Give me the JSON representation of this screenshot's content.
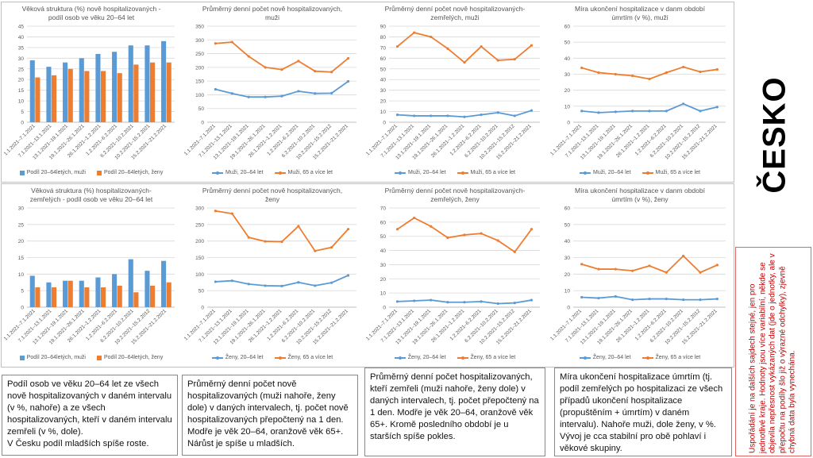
{
  "colors": {
    "blue": "#5b9bd5",
    "orange": "#ed7d31",
    "grid": "#d9d9d9",
    "axis": "#bfbfbf",
    "label": "#595959"
  },
  "country": "ČESKO",
  "side_note": "Uspořádání je na dalších sajdech stejné, jen pro jednotlivé kraje. Hodnoty jsou více variabilní, někde se objevila nepřesnost vykázaných dat (jde o jednotky, ale v přepočtu na podíly šlo již o výrazné odchylky), zjevně chybná data byla vynechána.",
  "notes": [
    "Podíl osob ve věku 20–64 let ze všech nově hospitalizovaných v daném intervalu (v %, nahoře) a ze všech hospitalizovaných, kteří v daném intervalu zemřeli (v %, dole).\nV Česku podíl mladších spíše roste.",
    "Průměrný denní počet nově hospitalizovaných (muži nahoře, ženy dole) v daných intervalech, tj. počet nově hospitalizovaných přepočtený na 1 den. Modře je věk 20–64, oranžově věk 65+. Nárůst je spíše u mladších.",
    "Průměrný denní počet hospitalizovaných, kteří zemřeli (muži nahoře, ženy dole) v daných intervalech, tj. počet přepočtený na 1 den. Modře je věk 20–64, oranžově věk 65+. Kromě posledního období je u starších spíše pokles.",
    "Míra ukončení hospitalizace úmrtím (tj. podíl zemřelých po hospitalizaci ze všech případů ukončení hospitalizace (propuštěním + úmrtím) v daném intervalu). Nahoře muži, dole ženy, v %. Vývoj je cca stabilní pro obě pohlaví i věkové skupiny."
  ],
  "chart_data": [
    {
      "type": "bar",
      "title": "Věková struktura (%) nově hospitalizovaných -\npodíl osob ve věku 20–64 let",
      "categories": [
        "1.1.2021–7.1.2021",
        "7.1.2021–13.1.2021",
        "13.1.2021–19.1.2021",
        "19.1.2021–26.1.2021",
        "26.1.2021–1.2.2021",
        "1.2.2021–6.2.2021",
        "6.2.2021–10.2.2021",
        "10.2.2021–15.2.2021",
        "15.2.2021–21.2.2021"
      ],
      "ylim": [
        0,
        45
      ],
      "yticks": [
        0,
        5,
        10,
        15,
        20,
        25,
        30,
        35,
        40,
        45
      ],
      "series": [
        {
          "name": "Podíl 20–64letých, muži",
          "color": "#5b9bd5",
          "values": [
            29,
            26,
            28,
            30,
            32,
            33,
            36,
            36,
            38
          ]
        },
        {
          "name": "Podíl 20–64letých, ženy",
          "color": "#ed7d31",
          "values": [
            21,
            22,
            25,
            24,
            24,
            23,
            27,
            28,
            28
          ]
        }
      ]
    },
    {
      "type": "line",
      "title": "Průměrný denní počet nově hospitalizovaných,\nmuži",
      "categories": [
        "1.1.2021–7.1.2021",
        "7.1.2021–13.1.2021",
        "13.1.2021–19.1.2021",
        "19.1.2021–26.1.2021",
        "26.1.2021–1.2.2021",
        "1.2.2021–6.2.2021",
        "6.2.2021–10.2.2021",
        "10.2.2021–15.2.2012",
        "15.2.2021–21.2.2021"
      ],
      "ylim": [
        0,
        350
      ],
      "yticks": [
        0,
        50,
        100,
        150,
        200,
        250,
        300,
        350
      ],
      "series": [
        {
          "name": "Muži, 20–64 let",
          "color": "#5b9bd5",
          "values": [
            120,
            105,
            92,
            92,
            95,
            113,
            105,
            106,
            149
          ]
        },
        {
          "name": "Muži, 65 a více let",
          "color": "#ed7d31",
          "values": [
            287,
            292,
            240,
            200,
            192,
            223,
            186,
            183,
            233
          ]
        }
      ]
    },
    {
      "type": "line",
      "title": "Průměrný denní počet nově hospitalizovaných-\nzemřelých, muži",
      "categories": [
        "1.1.2021–7.1.2021",
        "7.1.2021–13.1.2021",
        "13.1.2021–19.1.2021",
        "19.1.2021–26.1.2021",
        "26.1.2021–1.2.2021",
        "1.2.2021–6.2.2021",
        "6.2.2021–10.2.2021",
        "10.2.2021–15.2.2012",
        "15.2.2021–21.2.2021"
      ],
      "ylim": [
        0,
        90
      ],
      "yticks": [
        0,
        10,
        20,
        30,
        40,
        50,
        60,
        70,
        80,
        90
      ],
      "series": [
        {
          "name": "Muži, 20–64 let",
          "color": "#5b9bd5",
          "values": [
            7,
            6,
            6,
            6,
            5,
            7,
            9,
            6,
            11
          ]
        },
        {
          "name": "Muži, 65 a více let",
          "color": "#ed7d31",
          "values": [
            71,
            84,
            80,
            69,
            56,
            71,
            58,
            59,
            72
          ]
        }
      ]
    },
    {
      "type": "line",
      "title": "Míra ukončení hospitalizace v danm období\númrtím (v %), muži",
      "categories": [
        "1.1.2021–7.1.2021",
        "7.1.2021–13.1.2021",
        "13.1.2021–19.1.2021",
        "19.1.2021–26.1.2021",
        "26.1.2021–1.2.2021",
        "1.2.2021–6.2.2021",
        "6.2.2021–10.2.2021",
        "10.2.2021–15.2.2012",
        "15.2.2021–21.2.2021"
      ],
      "ylim": [
        0,
        60
      ],
      "yticks": [
        0,
        10,
        20,
        30,
        40,
        50,
        60
      ],
      "series": [
        {
          "name": "Muži, 20–64 let",
          "color": "#5b9bd5",
          "values": [
            7,
            6,
            6.5,
            7,
            7,
            7,
            11.5,
            7,
            9.5
          ]
        },
        {
          "name": "Muži, 65 a více let",
          "color": "#ed7d31",
          "values": [
            34,
            31,
            30,
            29,
            27,
            31,
            34.5,
            31.5,
            33
          ]
        }
      ]
    },
    {
      "type": "bar",
      "title": "Věková struktura (%) hospitalizovaných-\nzemřelých - podíl osob ve věku 20–64 let",
      "categories": [
        "1.1.2021–7.1.2021",
        "7.1.2021–13.1.2021",
        "13.1.2021–19.1.2021",
        "19.1.2021–26.1.2021",
        "26.1.2021–1.2.2021",
        "1.2.2021–6.2.2021",
        "6.2.2021–10.2.2021",
        "10.2.2021–15.2.2012",
        "15.2.2021–21.2.2021"
      ],
      "ylim": [
        0,
        30
      ],
      "yticks": [
        0,
        5,
        10,
        15,
        20,
        25,
        30
      ],
      "series": [
        {
          "name": "Podíl 20–64letých, muži",
          "color": "#5b9bd5",
          "values": [
            9.5,
            7.5,
            8,
            8,
            9,
            10,
            14.5,
            11,
            14
          ]
        },
        {
          "name": "Podíl 20–64letých, ženy",
          "color": "#ed7d31",
          "values": [
            6,
            6,
            8,
            6,
            6,
            6.5,
            4.5,
            6.5,
            7.5
          ]
        }
      ]
    },
    {
      "type": "line",
      "title": "Průměrný denní počet nově hospitalizovaných,\nženy",
      "categories": [
        "1.1.2021–7.1.2021",
        "7.1.2021–13.1.2021",
        "13.1.2021–19.1.2021",
        "19.1.2021–26.1.2021",
        "26.1.2021–1.2.2021",
        "1.2.2021–6.2.2021",
        "6.2.2021–10.2.2021",
        "10.2.2021–15.2.2012",
        "15.2.2021–21.2.2021"
      ],
      "ylim": [
        0,
        300
      ],
      "yticks": [
        0,
        50,
        100,
        150,
        200,
        250,
        300
      ],
      "series": [
        {
          "name": "Ženy, 20–64 let",
          "color": "#5b9bd5",
          "values": [
            77,
            80,
            70,
            65,
            64,
            75,
            65,
            74,
            96
          ]
        },
        {
          "name": "Ženy, 65 a více let",
          "color": "#ed7d31",
          "values": [
            291,
            283,
            211,
            199,
            198,
            245,
            170,
            181,
            236
          ]
        }
      ]
    },
    {
      "type": "line",
      "title": "Průměrný denní počet nově hospitalizovaných-\nzemřelých, ženy",
      "categories": [
        "1.1.2021–7.1.2021",
        "7.1.2021–13.1.2021",
        "13.1.2021–19.1.2021",
        "19.1.2021–26.1.2021",
        "26.1.2021–1.2.2021",
        "1.2.2021–6.2.2021",
        "6.2.2021–10.2.2021",
        "10.2.2021–15.2.2012",
        "15.2.2021–21.2.2021"
      ],
      "ylim": [
        0,
        70
      ],
      "yticks": [
        0,
        10,
        20,
        30,
        40,
        50,
        60,
        70
      ],
      "series": [
        {
          "name": "Ženy, 20–64 let",
          "color": "#5b9bd5",
          "values": [
            4,
            4.5,
            5,
            3.5,
            3.5,
            4,
            2.5,
            3,
            5
          ]
        },
        {
          "name": "Ženy, 65 a více let",
          "color": "#ed7d31",
          "values": [
            55,
            63,
            57,
            49,
            51,
            52,
            47,
            39,
            55
          ]
        }
      ]
    },
    {
      "type": "line",
      "title": "Míra ukončení hospitalizace v danm období\númrtím (v %), ženy",
      "categories": [
        "1.1.2021–7.1.2021",
        "7.1.2021–13.1.2021",
        "13.1.2021–19.1.2021",
        "19.1.2021–26.1.2021",
        "26.1.2021–1.2.2021",
        "1.2.2021–6.2.2021",
        "6.2.2021–10.2.2021",
        "10.2.2021–15.2.2012",
        "15.2.2021–21.2.2021"
      ],
      "ylim": [
        0,
        60
      ],
      "yticks": [
        0,
        10,
        20,
        30,
        40,
        50,
        60
      ],
      "series": [
        {
          "name": "Ženy, 20–64 let",
          "color": "#5b9bd5",
          "values": [
            6,
            5.5,
            6.5,
            4.5,
            5,
            5,
            4.5,
            4.5,
            5
          ]
        },
        {
          "name": "Ženy, 65 a více let",
          "color": "#ed7d31",
          "values": [
            26,
            23,
            23,
            22,
            25,
            21,
            31,
            21,
            25.5
          ]
        }
      ]
    }
  ]
}
